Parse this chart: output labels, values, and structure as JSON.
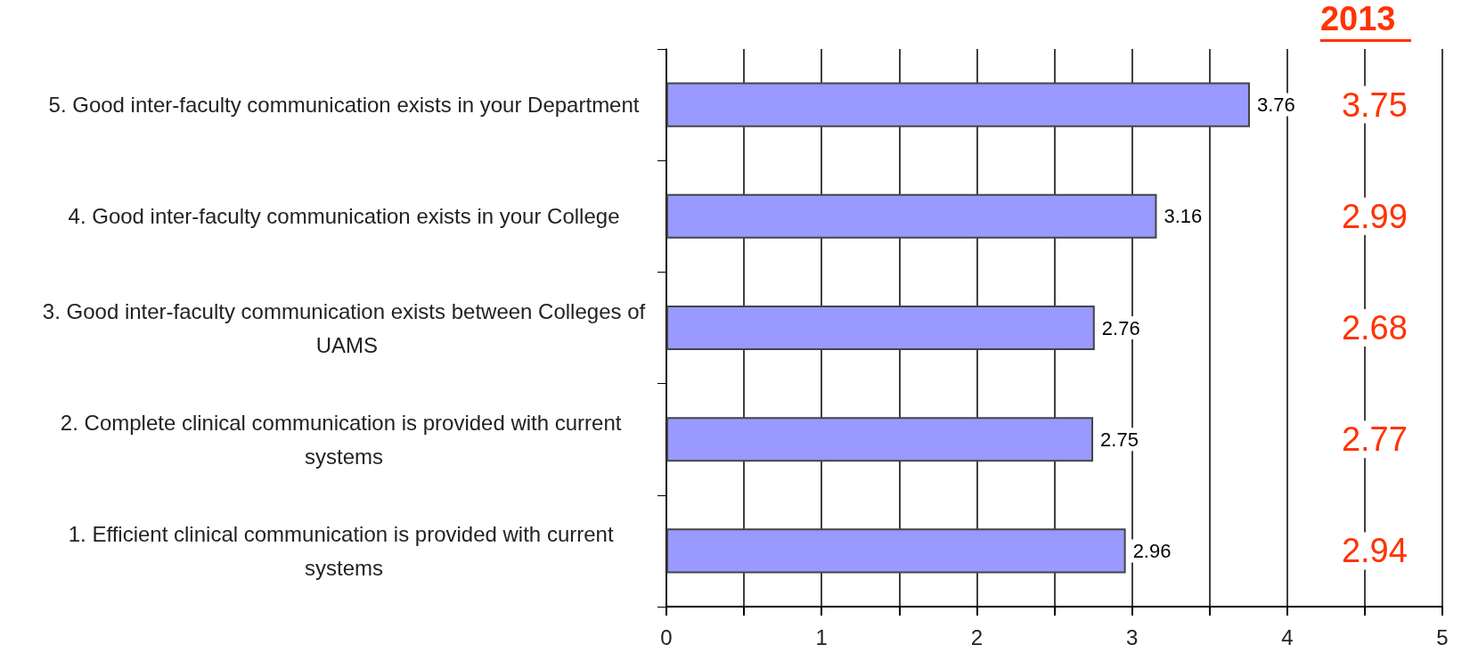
{
  "chart_data": {
    "type": "bar",
    "orientation": "horizontal",
    "categories": [
      "5. Good inter-faculty communication exists in your Department",
      "4. Good inter-faculty communication exists in your College",
      "3. Good inter-faculty communication exists between Colleges of UAMS",
      "2. Complete clinical communication is provided with current systems",
      "1. Efficient clinical communication is provided with current systems"
    ],
    "series": [
      {
        "color": "#9999ff",
        "values": [
          3.76,
          3.16,
          2.76,
          2.75,
          2.96
        ]
      }
    ],
    "data_labels": true,
    "xlim": [
      0,
      5
    ],
    "xticks": [
      0,
      {
        "value": 0.5,
        "label": null
      },
      1,
      {
        "value": 1.5,
        "label": null
      },
      2,
      {
        "value": 2.5,
        "label": null
      },
      3,
      {
        "value": 3.5,
        "label": null
      },
      4,
      {
        "value": 4.5,
        "label": null
      },
      5
    ],
    "grid": "x",
    "annotations": [
      "2013",
      "3.75",
      "2.99",
      "2.68",
      "2.77",
      "2.94"
    ]
  }
}
